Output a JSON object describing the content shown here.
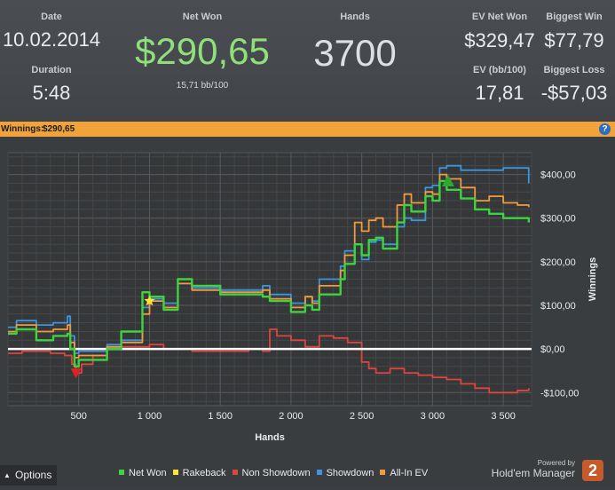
{
  "stats": {
    "date_label": "Date",
    "date_value": "10.02.2014",
    "duration_label": "Duration",
    "duration_value": "5:48",
    "netwon_label": "Net Won",
    "netwon_value": "$290,65",
    "netwon_sub": "15,71 bb/100",
    "hands_label": "Hands",
    "hands_value": "3700",
    "ev_netwon_label": "EV Net Won",
    "ev_netwon_value": "$329,47",
    "biggest_win_label": "Biggest Win",
    "biggest_win_value": "$77,79",
    "ev_bb_label": "EV (bb/100)",
    "ev_bb_value": "17,81",
    "biggest_loss_label": "Biggest Loss",
    "biggest_loss_value": "-$57,03"
  },
  "bar": {
    "label": "Winnings:",
    "value": "$290,65",
    "help": "?"
  },
  "footer": {
    "options_arrow": "▲",
    "options_label": "Options",
    "powered_by": "Powered by",
    "brand_name": "Hold'em Manager",
    "brand_number": "2"
  },
  "colors": {
    "net_won": "#3fd33f",
    "rakeback": "#ffe433",
    "non_showdown": "#e0443e",
    "showdown": "#3a96e0",
    "all_in_ev": "#f39a3c",
    "zero_line": "#ffffff",
    "bar": "#f1a23b"
  },
  "chart_data": {
    "type": "line",
    "xlabel": "Hands",
    "ylabel": "Winnings",
    "xlim": [
      0,
      3700
    ],
    "ylim": [
      -130,
      450
    ],
    "x_ticks": [
      500,
      1000,
      1500,
      2000,
      2500,
      3000,
      3500
    ],
    "x_tick_labels": [
      "500",
      "1 000",
      "1 500",
      "2 000",
      "2 500",
      "3 000",
      "3 500"
    ],
    "y_ticks": [
      -100,
      0,
      100,
      200,
      300,
      400
    ],
    "y_tick_labels": [
      "-$100,00",
      "$0,00",
      "$100,00",
      "$200,00",
      "$300,00",
      "$400,00"
    ],
    "grid": true,
    "legend_position": "bottom",
    "legend": [
      "Net Won",
      "Rakeback",
      "Non Showdown",
      "Showdown",
      "All-In EV"
    ],
    "series": [
      {
        "name": "Showdown",
        "x": [
          0,
          60,
          200,
          320,
          420,
          440,
          470,
          500,
          700,
          800,
          950,
          1000,
          1100,
          1200,
          1300,
          1500,
          1800,
          1850,
          2000,
          2100,
          2150,
          2200,
          2350,
          2380,
          2450,
          2500,
          2550,
          2600,
          2650,
          2750,
          2800,
          2850,
          2950,
          3000,
          3050,
          3100,
          3200,
          3300,
          3400,
          3500,
          3600,
          3680
        ],
        "y": [
          50,
          65,
          55,
          60,
          75,
          30,
          -10,
          -5,
          10,
          20,
          95,
          115,
          105,
          150,
          140,
          135,
          145,
          125,
          105,
          120,
          110,
          160,
          190,
          225,
          240,
          205,
          245,
          250,
          240,
          280,
          300,
          295,
          370,
          375,
          415,
          420,
          410,
          410,
          410,
          415,
          415,
          380
        ]
      },
      {
        "name": "All-In EV",
        "x": [
          0,
          60,
          200,
          320,
          420,
          440,
          470,
          500,
          700,
          800,
          950,
          1000,
          1100,
          1200,
          1300,
          1500,
          1800,
          1850,
          2000,
          2100,
          2150,
          2200,
          2350,
          2380,
          2450,
          2500,
          2550,
          2600,
          2650,
          2750,
          2800,
          2850,
          2950,
          3000,
          3050,
          3100,
          3200,
          3300,
          3400,
          3500,
          3600,
          3680
        ],
        "y": [
          40,
          55,
          40,
          45,
          55,
          15,
          -20,
          -15,
          5,
          15,
          80,
          110,
          95,
          150,
          135,
          130,
          135,
          115,
          95,
          120,
          105,
          145,
          180,
          215,
          290,
          270,
          295,
          300,
          280,
          330,
          355,
          335,
          360,
          355,
          400,
          390,
          370,
          340,
          350,
          335,
          330,
          325
        ]
      },
      {
        "name": "Net Won",
        "x": [
          0,
          60,
          200,
          320,
          420,
          440,
          470,
          500,
          700,
          800,
          950,
          1000,
          1100,
          1200,
          1300,
          1500,
          1800,
          1850,
          2000,
          2100,
          2150,
          2200,
          2350,
          2380,
          2450,
          2500,
          2550,
          2600,
          2650,
          2750,
          2800,
          2850,
          2950,
          3000,
          3050,
          3100,
          3200,
          3300,
          3400,
          3500,
          3600,
          3680
        ],
        "y": [
          35,
          45,
          20,
          30,
          35,
          0,
          -40,
          -25,
          0,
          40,
          130,
          120,
          90,
          160,
          145,
          125,
          120,
          110,
          85,
          100,
          90,
          125,
          160,
          195,
          240,
          215,
          250,
          255,
          230,
          290,
          330,
          315,
          350,
          340,
          385,
          365,
          345,
          320,
          310,
          300,
          300,
          290
        ]
      },
      {
        "name": "Non Showdown",
        "x": [
          0,
          100,
          200,
          300,
          400,
          450,
          480,
          520,
          600,
          700,
          800,
          900,
          1000,
          1100,
          1200,
          1300,
          1500,
          1700,
          1800,
          1850,
          1900,
          2000,
          2100,
          2200,
          2300,
          2400,
          2500,
          2550,
          2600,
          2700,
          2800,
          2900,
          3000,
          3100,
          3200,
          3300,
          3400,
          3500,
          3600,
          3680
        ],
        "y": [
          -10,
          -5,
          -5,
          -10,
          -15,
          -35,
          -55,
          -35,
          -15,
          0,
          5,
          5,
          10,
          0,
          0,
          -5,
          -5,
          0,
          -5,
          45,
          30,
          20,
          5,
          30,
          25,
          15,
          -30,
          -45,
          -55,
          -45,
          -55,
          -60,
          -65,
          -70,
          -80,
          -90,
          -100,
          -100,
          -95,
          -90
        ]
      }
    ],
    "markers": [
      {
        "name": "Biggest Loss",
        "shape": "triangle-down",
        "x": 480,
        "y": -55,
        "color": "#e02222"
      },
      {
        "name": "Rakeback",
        "shape": "star",
        "x": 1000,
        "y": 110,
        "color": "#ffe433"
      },
      {
        "name": "Peak",
        "shape": "triangle-up",
        "x": 3110,
        "y": 385,
        "color": "#2ea82e"
      }
    ]
  }
}
